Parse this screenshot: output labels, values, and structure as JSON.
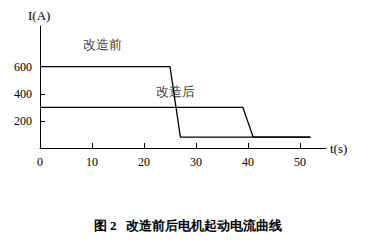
{
  "chart_data": {
    "type": "line",
    "title": "图 2   改造前后电机起动电流曲线",
    "x_label": "t(s)",
    "y_label": "I(A)",
    "series": [
      {
        "color": "#000000",
        "x": [
          0,
          25,
          27,
          52
        ],
        "values": [
          600,
          600,
          80,
          80
        ]
      },
      {
        "color": "#000000",
        "x": [
          0,
          39,
          41,
          52
        ],
        "values": [
          300,
          300,
          80,
          80
        ]
      }
    ],
    "annotations": [
      {
        "text": "改造前",
        "x": 12,
        "y": 760
      },
      {
        "text": "改造后",
        "x": 26,
        "y": 420
      }
    ],
    "xlim": [
      0,
      55
    ],
    "xticks": [
      0,
      10,
      20,
      30,
      40,
      50
    ],
    "ylim": [
      0,
      900
    ],
    "yticks": [
      200,
      400,
      600
    ],
    "grid": false
  }
}
